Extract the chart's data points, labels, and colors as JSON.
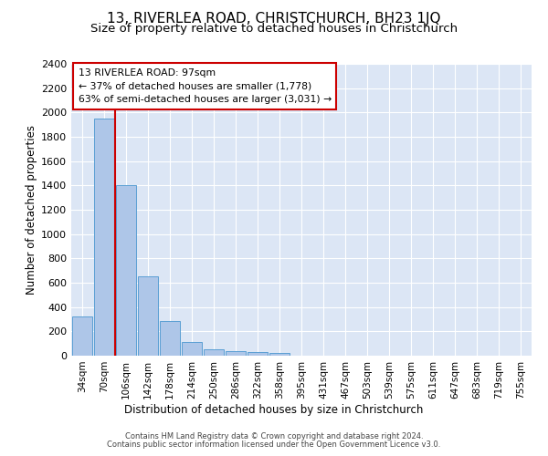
{
  "title": "13, RIVERLEA ROAD, CHRISTCHURCH, BH23 1JQ",
  "subtitle": "Size of property relative to detached houses in Christchurch",
  "xlabel": "Distribution of detached houses by size in Christchurch",
  "ylabel": "Number of detached properties",
  "footer_line1": "Contains HM Land Registry data © Crown copyright and database right 2024.",
  "footer_line2": "Contains public sector information licensed under the Open Government Licence v3.0.",
  "bar_labels": [
    "34sqm",
    "70sqm",
    "106sqm",
    "142sqm",
    "178sqm",
    "214sqm",
    "250sqm",
    "286sqm",
    "322sqm",
    "358sqm",
    "395sqm",
    "431sqm",
    "467sqm",
    "503sqm",
    "539sqm",
    "575sqm",
    "611sqm",
    "647sqm",
    "683sqm",
    "719sqm",
    "755sqm"
  ],
  "bar_values": [
    325,
    1950,
    1400,
    650,
    285,
    110,
    50,
    40,
    30,
    20,
    0,
    0,
    0,
    0,
    0,
    0,
    0,
    0,
    0,
    0,
    0
  ],
  "bar_color": "#aec6e8",
  "bar_edge_color": "#5a9fd4",
  "vline_x_index": 2.0,
  "vline_color": "#cc0000",
  "annotation_text": "13 RIVERLEA ROAD: 97sqm\n← 37% of detached houses are smaller (1,778)\n63% of semi-detached houses are larger (3,031) →",
  "annotation_box_color": "#ffffff",
  "annotation_box_edge_color": "#cc0000",
  "ylim": [
    0,
    2400
  ],
  "yticks": [
    0,
    200,
    400,
    600,
    800,
    1000,
    1200,
    1400,
    1600,
    1800,
    2000,
    2200,
    2400
  ],
  "background_color": "#dce6f5",
  "plot_bg_color": "#dce6f5",
  "grid_color": "#ffffff",
  "title_fontsize": 11,
  "subtitle_fontsize": 9.5,
  "title_fontweight": "normal"
}
